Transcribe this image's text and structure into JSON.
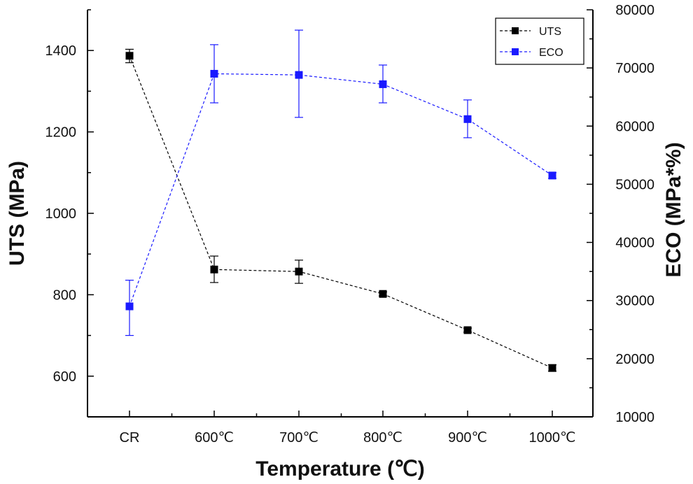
{
  "chart_data": {
    "type": "line",
    "categories": [
      "CR",
      "600℃",
      "700℃",
      "800℃",
      "900℃",
      "1000℃"
    ],
    "xlabel": "Temperature (℃)",
    "ylabel_left": "UTS (MPa)",
    "ylabel_right": "ECO (MPa*%)",
    "ylim_left": [
      500,
      1500
    ],
    "ylim_right": [
      10000,
      80000
    ],
    "yticks_left": [
      600,
      800,
      1000,
      1200,
      1400
    ],
    "yticks_right": [
      10000,
      20000,
      30000,
      40000,
      50000,
      60000,
      70000,
      80000
    ],
    "legend_position": "top-right",
    "grid": false,
    "series": [
      {
        "name": "UTS",
        "axis": "left",
        "color": "#000000",
        "values": [
          1387,
          862,
          857,
          802,
          713,
          620
        ],
        "err_low": [
          1370,
          830,
          828,
          797,
          708,
          612
        ],
        "err_high": [
          1403,
          895,
          885,
          807,
          718,
          628
        ]
      },
      {
        "name": "ECO",
        "axis": "right",
        "color": "#1a1aff",
        "values": [
          29000,
          69000,
          68800,
          67200,
          61200,
          51500
        ],
        "err_low": [
          24000,
          64000,
          61500,
          64000,
          58000,
          51000
        ],
        "err_high": [
          33500,
          74000,
          76500,
          70500,
          64500,
          52000
        ]
      }
    ]
  }
}
